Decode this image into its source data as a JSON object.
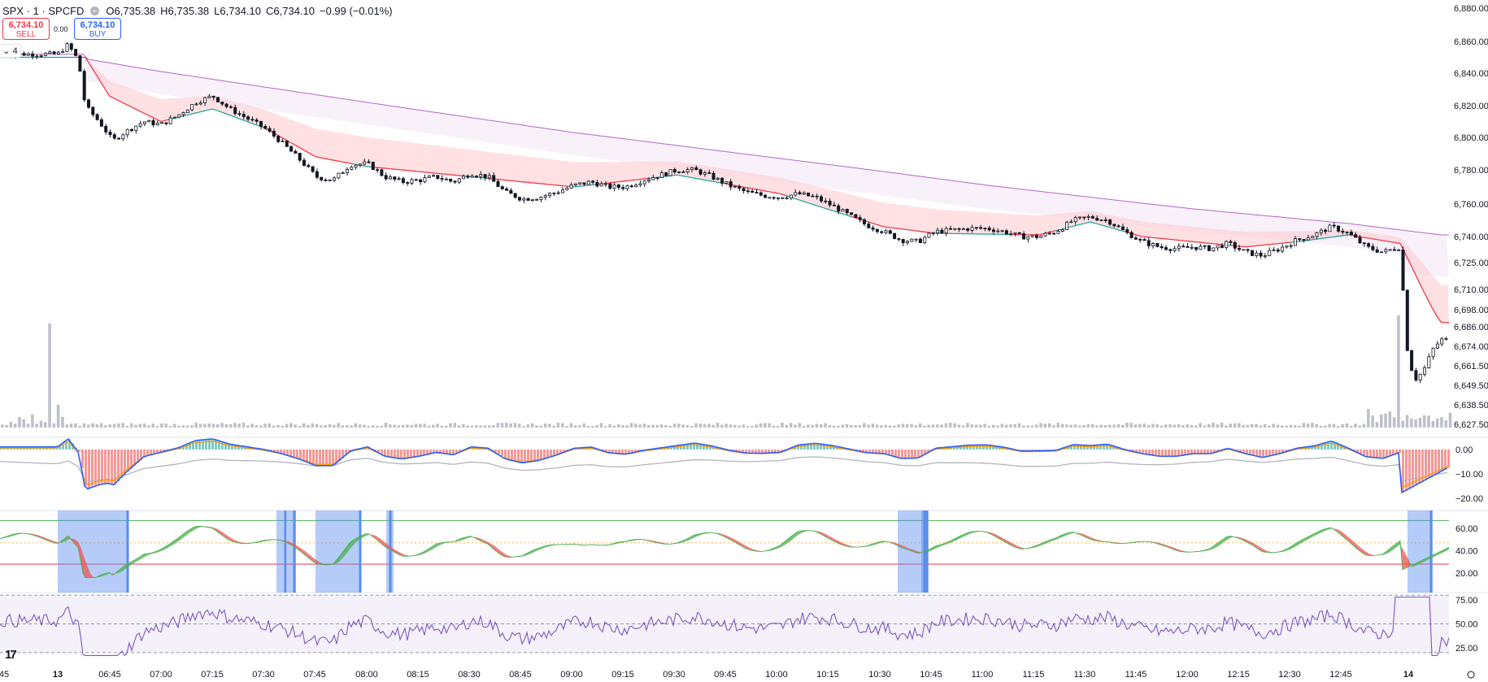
{
  "header": {
    "symbol": "SPX · 1 · SPCFD",
    "open_label": "O",
    "open": "6,735.38",
    "high_label": "H",
    "high": "6,735.38",
    "low_label": "L",
    "low": "6,734.10",
    "close_label": "C",
    "close": "6,734.10",
    "change": "−0.99 (−0.01%)"
  },
  "trade": {
    "sell_price": "6,734.10",
    "sell_label": "SELL",
    "spread": "0.00",
    "buy_price": "6,734.10",
    "buy_label": "BUY"
  },
  "legend_toggle": "4",
  "colors": {
    "up": "#26a69a",
    "down": "#ef5350",
    "candle": "#131722",
    "ema_fast_up": "#26a69a",
    "ema_fast_down": "#f23645",
    "ema_slow": "#b667c9",
    "volume": "#b2b5be",
    "macd": "#2962ff",
    "signal": "#ff9800",
    "rsi": "#7e57c2",
    "highlight": "#5b8def"
  },
  "chart_data": [
    {
      "type": "candlestick",
      "pane": "price",
      "ylim": [
        6620,
        6885
      ],
      "y_tick_labels": [
        "6,880.00",
        "6,860.00",
        "6,840.00",
        "6,820.00",
        "6,800.00",
        "6,780.00",
        "6,760.00",
        "6,740.00",
        "6,725.00",
        "6,710.00",
        "6,698.00",
        "6,686.00",
        "6,674.00",
        "6,661.50",
        "6,649.50",
        "6,638.50",
        "6,627.50"
      ],
      "y_ticks": [
        6880,
        6860,
        6840,
        6820,
        6800,
        6780,
        6760,
        6740,
        6725,
        6710,
        6698,
        6686,
        6674,
        6661.5,
        6649.5,
        6638.5,
        6627.5
      ],
      "x_tick_labels": [
        "45",
        "13",
        "06:45",
        "07:00",
        "07:15",
        "07:30",
        "07:45",
        "08:00",
        "08:15",
        "08:30",
        "08:45",
        "09:00",
        "09:15",
        "09:30",
        "09:45",
        "10:00",
        "10:15",
        "10:30",
        "10:45",
        "11:00",
        "11:15",
        "11:30",
        "11:45",
        "12:00",
        "12:15",
        "12:30",
        "12:45",
        "14"
      ],
      "close_path": [
        [
          "06:30",
          6852
        ],
        [
          "06:33",
          6858
        ],
        [
          "06:36",
          6848
        ],
        [
          "06:38",
          6820
        ],
        [
          "06:42",
          6810
        ],
        [
          "06:46",
          6798
        ],
        [
          "06:50",
          6804
        ],
        [
          "06:55",
          6810
        ],
        [
          "07:00",
          6808
        ],
        [
          "07:05",
          6814
        ],
        [
          "07:10",
          6822
        ],
        [
          "07:15",
          6826
        ],
        [
          "07:20",
          6818
        ],
        [
          "07:25",
          6812
        ],
        [
          "07:30",
          6806
        ],
        [
          "07:35",
          6797
        ],
        [
          "07:40",
          6787
        ],
        [
          "07:45",
          6776
        ],
        [
          "07:50",
          6774
        ],
        [
          "07:55",
          6783
        ],
        [
          "08:00",
          6784
        ],
        [
          "08:05",
          6776
        ],
        [
          "08:10",
          6773
        ],
        [
          "08:15",
          6774
        ],
        [
          "08:20",
          6776
        ],
        [
          "08:25",
          6773
        ],
        [
          "08:30",
          6778
        ],
        [
          "08:35",
          6776
        ],
        [
          "08:40",
          6767
        ],
        [
          "08:45",
          6763
        ],
        [
          "08:50",
          6764
        ],
        [
          "08:55",
          6767
        ],
        [
          "09:00",
          6771
        ],
        [
          "09:05",
          6773
        ],
        [
          "09:10",
          6770
        ],
        [
          "09:15",
          6770
        ],
        [
          "09:20",
          6774
        ],
        [
          "09:25",
          6777
        ],
        [
          "09:30",
          6780
        ],
        [
          "09:35",
          6780
        ],
        [
          "09:40",
          6776
        ],
        [
          "09:45",
          6771
        ],
        [
          "09:50",
          6767
        ],
        [
          "09:55",
          6765
        ],
        [
          "10:00",
          6764
        ],
        [
          "10:05",
          6766
        ],
        [
          "10:10",
          6764
        ],
        [
          "10:15",
          6759
        ],
        [
          "10:20",
          6753
        ],
        [
          "10:25",
          6747
        ],
        [
          "10:30",
          6743
        ],
        [
          "10:35",
          6738
        ],
        [
          "10:40",
          6737
        ],
        [
          "10:45",
          6743
        ],
        [
          "10:50",
          6744
        ],
        [
          "10:55",
          6745
        ],
        [
          "11:00",
          6745
        ],
        [
          "11:05",
          6743
        ],
        [
          "11:10",
          6740
        ],
        [
          "11:15",
          6740
        ],
        [
          "11:20",
          6743
        ],
        [
          "11:25",
          6750
        ],
        [
          "11:30",
          6752
        ],
        [
          "11:35",
          6750
        ],
        [
          "11:40",
          6743
        ],
        [
          "11:45",
          6737
        ],
        [
          "11:50",
          6734
        ],
        [
          "11:55",
          6733
        ],
        [
          "12:00",
          6734
        ],
        [
          "12:05",
          6733
        ],
        [
          "12:10",
          6736
        ],
        [
          "12:15",
          6731
        ],
        [
          "12:20",
          6729
        ],
        [
          "12:25",
          6733
        ],
        [
          "12:30",
          6738
        ],
        [
          "12:35",
          6741
        ],
        [
          "12:40",
          6746
        ],
        [
          "12:45",
          6742
        ],
        [
          "12:50",
          6734
        ],
        [
          "12:55",
          6731
        ],
        [
          "13:00",
          6734
        ],
        [
          "13:01",
          6664
        ],
        [
          "13:02",
          6653
        ],
        [
          "13:03",
          6660
        ],
        [
          "13:04",
          6672
        ],
        [
          "13:05",
          6678
        ]
      ]
    },
    {
      "type": "line",
      "pane": "price",
      "series": [
        {
          "values": [
            [
              [
                "06:30",
                6851
              ],
              [
                "06:38",
                6850
              ],
              [
                "06:45",
                6826
              ],
              [
                "07:00",
                6810
              ],
              [
                "07:15",
                6818
              ],
              [
                "07:30",
                6806
              ],
              [
                "07:45",
                6788
              ],
              [
                "08:00",
                6782
              ],
              [
                "08:30",
                6776
              ],
              [
                "09:00",
                6770
              ],
              [
                "09:30",
                6777
              ],
              [
                "10:00",
                6766
              ],
              [
                "10:30",
                6746
              ],
              [
                "10:45",
                6742
              ],
              [
                "11:15",
                6741
              ],
              [
                "11:30",
                6749
              ],
              [
                "11:45",
                6740
              ],
              [
                "12:15",
                6734
              ],
              [
                "12:30",
                6737
              ],
              [
                "12:45",
                6741
              ],
              [
                "13:00",
                6736
              ],
              [
                "13:05",
                6689
              ]
            ]
          ]
        },
        {
          "values": [
            [
              [
                "06:30",
                6852
              ],
              [
                "07:00",
                6841
              ],
              [
                "08:00",
                6822
              ],
              [
                "09:00",
                6803
              ],
              [
                "10:00",
                6787
              ],
              [
                "11:00",
                6771
              ],
              [
                "12:00",
                6757
              ],
              [
                "12:45",
                6748
              ],
              [
                "13:05",
                6741
              ]
            ]
          ]
        }
      ]
    },
    {
      "type": "bar",
      "pane": "volume",
      "note_values": "relative volume, spikes at session open and at close of 13th"
    },
    {
      "type": "line",
      "pane": "macd",
      "y_tick_labels": [
        "0.00",
        "−10.00",
        "−20.00"
      ],
      "y_ticks": [
        0,
        -10,
        -20
      ],
      "ylim": [
        -22,
        3
      ]
    },
    {
      "type": "area",
      "pane": "oscillator",
      "y_tick_labels": [
        "60.00",
        "40.00",
        "20.00"
      ],
      "y_ticks": [
        60,
        40,
        20
      ],
      "ylim": [
        10,
        75
      ]
    },
    {
      "type": "line",
      "pane": "rsi",
      "y_tick_labels": [
        "75.00",
        "50.00",
        "25.00"
      ],
      "y_ticks": [
        75,
        50,
        25
      ],
      "ylim": [
        15,
        85
      ]
    }
  ]
}
